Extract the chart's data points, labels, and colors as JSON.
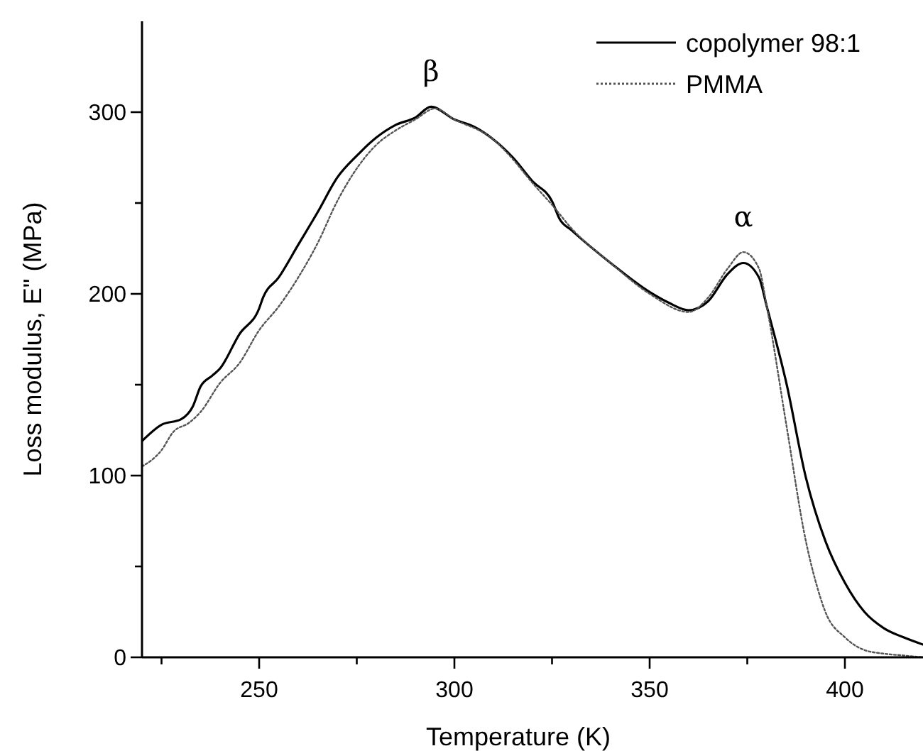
{
  "chart_data": {
    "type": "line",
    "xlabel": "Temperature (K)",
    "ylabel": "Loss modulus, E\" (MPa)",
    "xlim": [
      220,
      420
    ],
    "ylim": [
      0,
      350
    ],
    "xticks": [
      {
        "value": 225,
        "label": null
      },
      250,
      {
        "value": 275,
        "label": null
      },
      300,
      {
        "value": 325,
        "label": null
      },
      350,
      {
        "value": 375,
        "label": null
      },
      400
    ],
    "yticks": [
      0,
      {
        "value": 50,
        "label": null
      },
      100,
      {
        "value": 150,
        "label": null
      },
      200,
      {
        "value": 250,
        "label": null
      },
      300
    ],
    "legend": "top right",
    "grid": false,
    "annotations": [
      {
        "text": "β",
        "x": 294,
        "y": 303
      },
      {
        "text": "α",
        "x": 374,
        "y": 223
      }
    ],
    "series": [
      {
        "name": "copolymer 98:1",
        "color": "#000000",
        "line_style": "solid",
        "x": [
          220,
          225,
          230,
          233,
          235,
          238,
          240,
          245,
          250,
          251,
          255,
          260,
          265,
          270,
          275,
          280,
          285,
          290,
          294,
          300,
          305,
          310,
          315,
          320,
          325,
          327,
          330,
          340,
          350,
          355,
          360,
          365,
          370,
          374,
          378,
          380,
          385,
          390,
          395,
          400,
          405,
          410,
          415,
          420
        ],
        "values": [
          119,
          128,
          131,
          138,
          149,
          155,
          159,
          178,
          192,
          198,
          209,
          227,
          245,
          264,
          276,
          286,
          293,
          297,
          303,
          296,
          292,
          285,
          275,
          262,
          251,
          241,
          235,
          217,
          201,
          195,
          191,
          196,
          211,
          217,
          209,
          193,
          151,
          99,
          64,
          41,
          25,
          16,
          11,
          7
        ]
      },
      {
        "name": "PMMA",
        "color": "#555555",
        "line_style": "dotted",
        "x": [
          220,
          225,
          228,
          232,
          235,
          240,
          245,
          250,
          255,
          260,
          265,
          270,
          275,
          280,
          285,
          290,
          295,
          300,
          310,
          315,
          320,
          325,
          330,
          340,
          350,
          360,
          365,
          370,
          374,
          378,
          380,
          385,
          390,
          393,
          395,
          400,
          405,
          410,
          415,
          420
        ],
        "values": [
          105,
          114,
          124,
          129,
          135,
          151,
          162,
          180,
          193,
          209,
          228,
          251,
          269,
          282,
          290,
          296,
          302,
          296,
          285,
          274,
          261,
          249,
          236,
          217,
          200,
          190,
          198,
          214,
          223,
          214,
          193,
          128,
          64,
          38,
          25,
          11,
          4,
          2,
          1,
          0
        ]
      }
    ]
  }
}
